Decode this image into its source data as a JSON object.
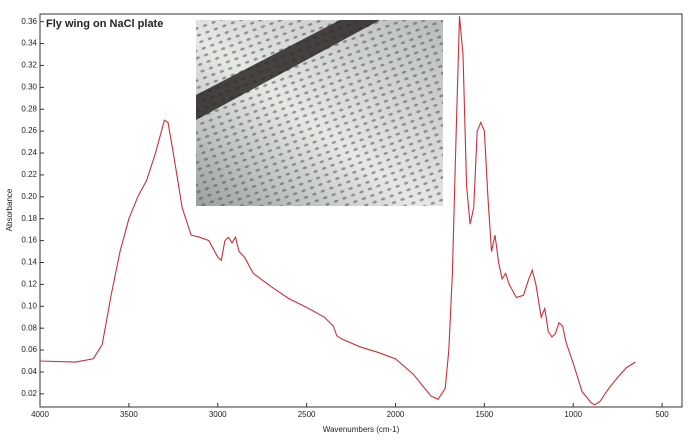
{
  "chart_data": {
    "type": "line",
    "title": "Fly wing on NaCl plate",
    "x_label": "Wavenumbers (cm-1)",
    "y_label": "Absorbance",
    "color": "#c8303a",
    "x": [
      4000,
      3800,
      3700,
      3650,
      3600,
      3550,
      3500,
      3450,
      3400,
      3350,
      3300,
      3280,
      3250,
      3200,
      3150,
      3100,
      3050,
      3000,
      2980,
      2960,
      2940,
      2920,
      2900,
      2880,
      2850,
      2800,
      2700,
      2600,
      2500,
      2400,
      2350,
      2330,
      2300,
      2200,
      2100,
      2000,
      1900,
      1800,
      1760,
      1720,
      1700,
      1680,
      1660,
      1640,
      1620,
      1600,
      1580,
      1560,
      1540,
      1520,
      1500,
      1480,
      1460,
      1440,
      1420,
      1400,
      1380,
      1360,
      1320,
      1280,
      1250,
      1230,
      1210,
      1180,
      1160,
      1140,
      1120,
      1100,
      1080,
      1060,
      1040,
      1000,
      950,
      900,
      880,
      850,
      800,
      750,
      700,
      650
    ],
    "values": [
      0.05,
      0.049,
      0.052,
      0.065,
      0.11,
      0.15,
      0.18,
      0.2,
      0.215,
      0.24,
      0.27,
      0.268,
      0.24,
      0.19,
      0.165,
      0.163,
      0.16,
      0.145,
      0.142,
      0.16,
      0.163,
      0.158,
      0.163,
      0.15,
      0.145,
      0.13,
      0.118,
      0.107,
      0.099,
      0.09,
      0.082,
      0.073,
      0.07,
      0.063,
      0.058,
      0.052,
      0.038,
      0.018,
      0.015,
      0.025,
      0.06,
      0.13,
      0.25,
      0.365,
      0.33,
      0.21,
      0.175,
      0.19,
      0.26,
      0.268,
      0.26,
      0.2,
      0.15,
      0.165,
      0.14,
      0.125,
      0.13,
      0.12,
      0.108,
      0.11,
      0.125,
      0.133,
      0.12,
      0.09,
      0.098,
      0.077,
      0.072,
      0.075,
      0.085,
      0.082,
      0.067,
      0.048,
      0.022,
      0.012,
      0.01,
      0.013,
      0.025,
      0.035,
      0.044,
      0.049
    ],
    "xlim": [
      4000,
      388
    ],
    "xticks": [
      4000,
      3500,
      3000,
      2500,
      2000,
      1500,
      1000,
      500
    ],
    "ylim": [
      0.008,
      0.367
    ],
    "yticks": [
      0.02,
      0.04,
      0.06,
      0.08,
      {
        "value": 0.1,
        "label": "0.10"
      },
      0.12,
      0.14,
      0.16,
      0.18,
      {
        "value": 0.2,
        "label": "0.20"
      },
      0.22,
      0.24,
      0.26,
      0.28,
      {
        "value": 0.3,
        "label": "0.30"
      },
      0.32,
      0.34,
      0.36
    ]
  }
}
